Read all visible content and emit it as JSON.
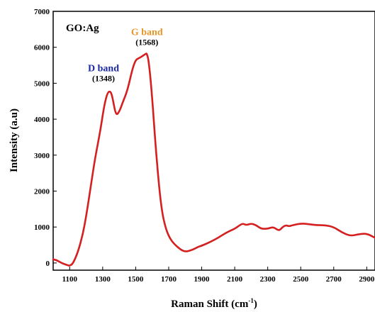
{
  "chart_data": {
    "type": "line",
    "xlabel": "Raman Shift (cm",
    "xlabel_superscript": "-1",
    "xlabel_suffix": ")",
    "ylabel": "Intensity (a.u)",
    "xlim": [
      1000,
      2950
    ],
    "ylim": [
      -200,
      7000
    ],
    "x_ticks": [
      1100,
      1300,
      1500,
      1700,
      1900,
      2100,
      2300,
      2500,
      2700,
      2900
    ],
    "y_ticks": [
      0,
      1000,
      2000,
      3000,
      4000,
      5000,
      6000,
      7000
    ],
    "grid": false,
    "legend": "none",
    "sample_label": "GO:Ag",
    "series": [
      {
        "color": "#d42020",
        "x": [
          1000,
          1020,
          1050,
          1080,
          1100,
          1120,
          1150,
          1180,
          1200,
          1230,
          1250,
          1270,
          1290,
          1310,
          1330,
          1348,
          1360,
          1380,
          1400,
          1420,
          1450,
          1480,
          1500,
          1520,
          1540,
          1560,
          1568,
          1580,
          1600,
          1620,
          1640,
          1660,
          1680,
          1700,
          1720,
          1740,
          1760,
          1780,
          1800,
          1820,
          1850,
          1880,
          1900,
          1950,
          2000,
          2050,
          2100,
          2130,
          2150,
          2170,
          2200,
          2230,
          2260,
          2300,
          2330,
          2350,
          2370,
          2390,
          2410,
          2430,
          2450,
          2500,
          2550,
          2600,
          2650,
          2700,
          2750,
          2800,
          2850,
          2900,
          2950
        ],
        "values": [
          100,
          80,
          0,
          -50,
          -80,
          -20,
          300,
          800,
          1300,
          2200,
          2800,
          3300,
          3800,
          4400,
          4750,
          4780,
          4600,
          4100,
          4200,
          4450,
          4800,
          5400,
          5650,
          5700,
          5750,
          5820,
          5830,
          5600,
          4600,
          3300,
          2200,
          1400,
          1000,
          750,
          600,
          500,
          420,
          350,
          320,
          330,
          380,
          450,
          480,
          580,
          700,
          850,
          950,
          1050,
          1100,
          1050,
          1100,
          1050,
          950,
          950,
          1000,
          950,
          900,
          1000,
          1050,
          1020,
          1050,
          1100,
          1080,
          1050,
          1050,
          1000,
          850,
          750,
          800,
          820,
          700
        ]
      }
    ],
    "annotations": [
      {
        "name": "D band",
        "position": "(1348)",
        "x": 1348,
        "y": 4780,
        "color": "#1a27a8"
      },
      {
        "name": "G band",
        "position": "(1568)",
        "x": 1568,
        "y": 5830,
        "color": "#e69528"
      }
    ]
  }
}
